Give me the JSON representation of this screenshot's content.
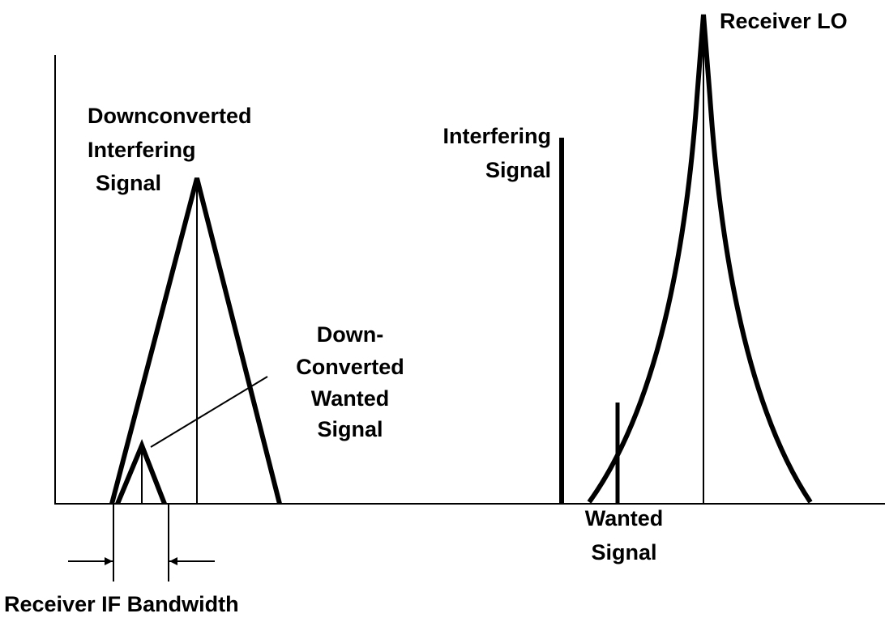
{
  "labels": {
    "receiver_lo": "Receiver LO",
    "downconverted_interfering": [
      "Downconverted",
      "Interfering",
      "Signal"
    ],
    "interfering": [
      "Interfering",
      "Signal"
    ],
    "downconverted_wanted": [
      "Down-",
      "Converted",
      "Wanted",
      "Signal"
    ],
    "wanted": [
      "Wanted",
      "Signal"
    ],
    "if_bandwidth": "Receiver IF Bandwidth"
  }
}
